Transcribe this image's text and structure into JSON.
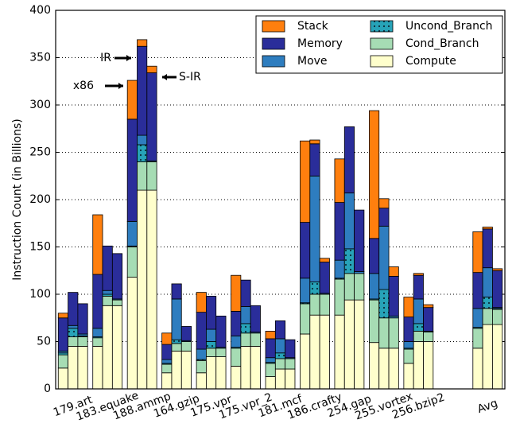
{
  "chart_data": {
    "type": "stacked_grouped_bar",
    "ylabel": "Instruction Count (in Billions)",
    "categories": [
      "179.art",
      "183.equake",
      "188.ammp",
      "164.gzip",
      "175.vpr",
      "175.vpr_2",
      "181.mcf",
      "186.crafty",
      "254.gap",
      "255.vortex",
      "256.bzip2",
      null,
      "Avg"
    ],
    "bar_labels": [
      "x86",
      "IR",
      "S-IR"
    ],
    "series": [
      {
        "name": "Compute",
        "color": "#ffffcc",
        "values": [
          [
            22,
            45,
            45
          ],
          [
            45,
            88,
            88
          ],
          [
            118,
            210,
            210
          ],
          [
            17,
            40,
            40
          ],
          [
            17,
            34,
            34
          ],
          [
            24,
            45,
            45
          ],
          [
            13,
            21,
            21
          ],
          [
            58,
            78,
            78
          ],
          [
            78,
            94,
            94
          ],
          [
            49,
            43,
            43
          ],
          [
            27,
            50,
            50
          ],
          null,
          [
            43,
            68,
            68
          ]
        ]
      },
      {
        "name": "Cond_Branch",
        "color": "#a6dcb4",
        "values": [
          [
            14,
            10,
            10
          ],
          [
            9,
            10,
            6
          ],
          [
            32,
            30,
            30
          ],
          [
            9,
            8,
            10
          ],
          [
            13,
            9,
            9
          ],
          [
            19,
            14,
            14
          ],
          [
            14,
            11,
            11
          ],
          [
            32,
            22,
            22
          ],
          [
            38,
            28,
            28
          ],
          [
            45,
            32,
            32
          ],
          [
            15,
            11,
            10
          ],
          null,
          [
            21,
            17,
            16
          ]
        ]
      },
      {
        "name": "Uncond_Branch",
        "color": "#27a3b8",
        "hatch": "dots",
        "values": [
          [
            2,
            9,
            1
          ],
          [
            1,
            2,
            0
          ],
          [
            1,
            18,
            0
          ],
          [
            1,
            4,
            0
          ],
          [
            1,
            7,
            0
          ],
          [
            1,
            10,
            0
          ],
          [
            1,
            6,
            0
          ],
          [
            1,
            13,
            0
          ],
          [
            1,
            26,
            0
          ],
          [
            1,
            30,
            0
          ],
          [
            1,
            8,
            0
          ],
          null,
          [
            1,
            12,
            1
          ]
        ]
      },
      {
        "name": "Move",
        "color": "#2e7dbf",
        "values": [
          [
            2,
            3,
            2
          ],
          [
            9,
            4,
            1
          ],
          [
            26,
            10,
            1
          ],
          [
            4,
            43,
            1
          ],
          [
            11,
            13,
            1
          ],
          [
            12,
            18,
            1
          ],
          [
            5,
            15,
            1
          ],
          [
            26,
            112,
            1
          ],
          [
            19,
            59,
            2
          ],
          [
            27,
            67,
            2
          ],
          [
            7,
            26,
            1
          ],
          null,
          [
            20,
            31,
            1
          ]
        ]
      },
      {
        "name": "Memory",
        "color": "#2a2d9a",
        "values": [
          [
            35,
            35,
            32
          ],
          [
            57,
            47,
            48
          ],
          [
            108,
            94,
            93
          ],
          [
            16,
            16,
            15
          ],
          [
            39,
            35,
            33
          ],
          [
            26,
            28,
            28
          ],
          [
            20,
            19,
            19
          ],
          [
            59,
            34,
            33
          ],
          [
            61,
            70,
            65
          ],
          [
            37,
            19,
            42
          ],
          [
            26,
            25,
            25
          ],
          null,
          [
            38,
            41,
            39
          ]
        ]
      },
      {
        "name": "Stack",
        "color": "#ff7f0e",
        "values": [
          [
            5,
            0,
            0
          ],
          [
            63,
            0,
            0
          ],
          [
            41,
            7,
            7
          ],
          [
            12,
            0,
            0
          ],
          [
            21,
            0,
            0
          ],
          [
            38,
            0,
            0
          ],
          [
            8,
            0,
            0
          ],
          [
            86,
            4,
            4
          ],
          [
            46,
            0,
            0
          ],
          [
            135,
            10,
            10
          ],
          [
            21,
            2,
            3
          ],
          null,
          [
            43,
            2,
            2
          ]
        ]
      }
    ],
    "ylim": [
      0,
      400
    ],
    "yticks": [
      0,
      50,
      100,
      150,
      200,
      250,
      300,
      350,
      400
    ],
    "grid": true,
    "legend": "upper right"
  }
}
